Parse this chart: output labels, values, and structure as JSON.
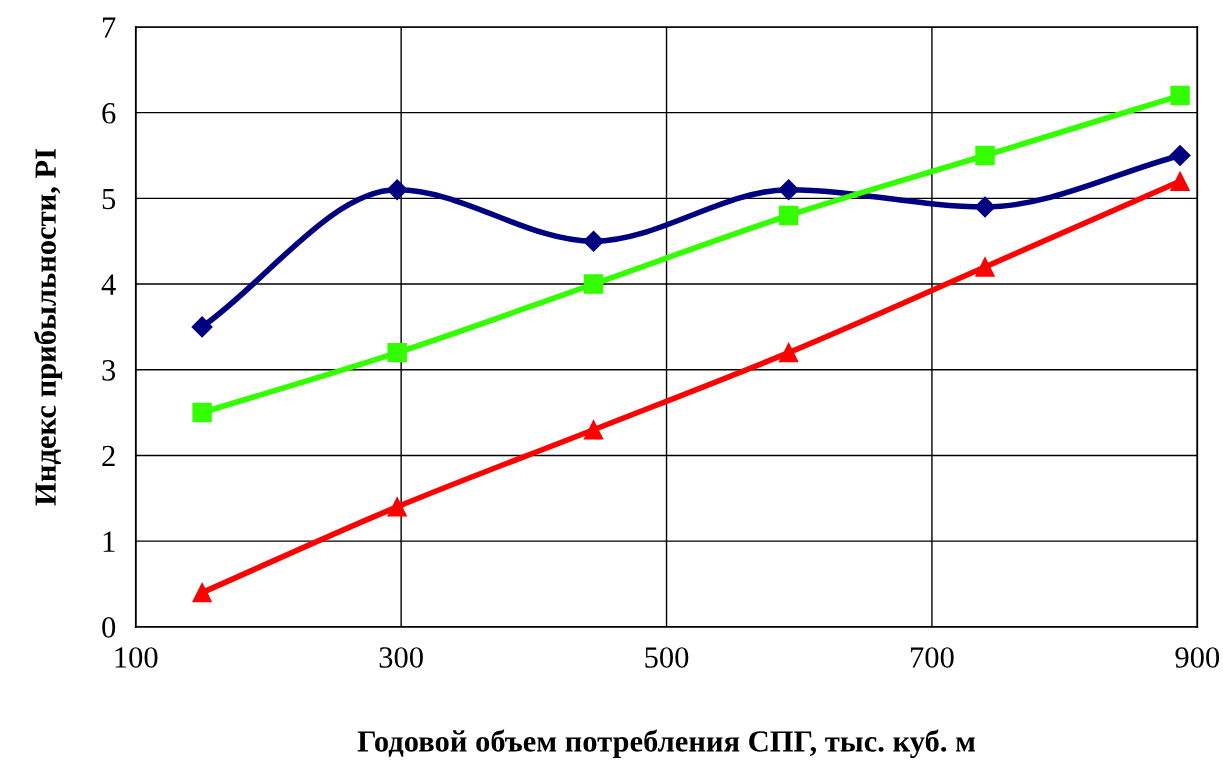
{
  "chart_data": {
    "type": "line",
    "xlabel": "Годовой объем потребления СПГ, тыс. куб. м",
    "ylabel": "Индекс прибыльности, PI",
    "x": [
      150,
      297,
      445,
      592,
      740,
      887
    ],
    "series": [
      {
        "color": "#000080",
        "marker": "diamond",
        "values": [
          3.5,
          5.1,
          4.5,
          5.1,
          4.9,
          5.5
        ]
      },
      {
        "color": "#33ff00",
        "marker": "square",
        "values": [
          2.5,
          3.2,
          4.0,
          4.8,
          5.5,
          6.2
        ]
      },
      {
        "color": "#ff0000",
        "marker": "triangle",
        "values": [
          0.4,
          1.4,
          2.3,
          3.2,
          4.2,
          5.2
        ]
      }
    ],
    "xlim": [
      100,
      900
    ],
    "xticks": [
      100,
      300,
      500,
      700,
      900
    ],
    "ylim": [
      0,
      7
    ],
    "yticks": [
      0,
      1,
      2,
      3,
      4,
      5,
      6,
      7
    ],
    "grid": true,
    "line_style": "solid"
  }
}
